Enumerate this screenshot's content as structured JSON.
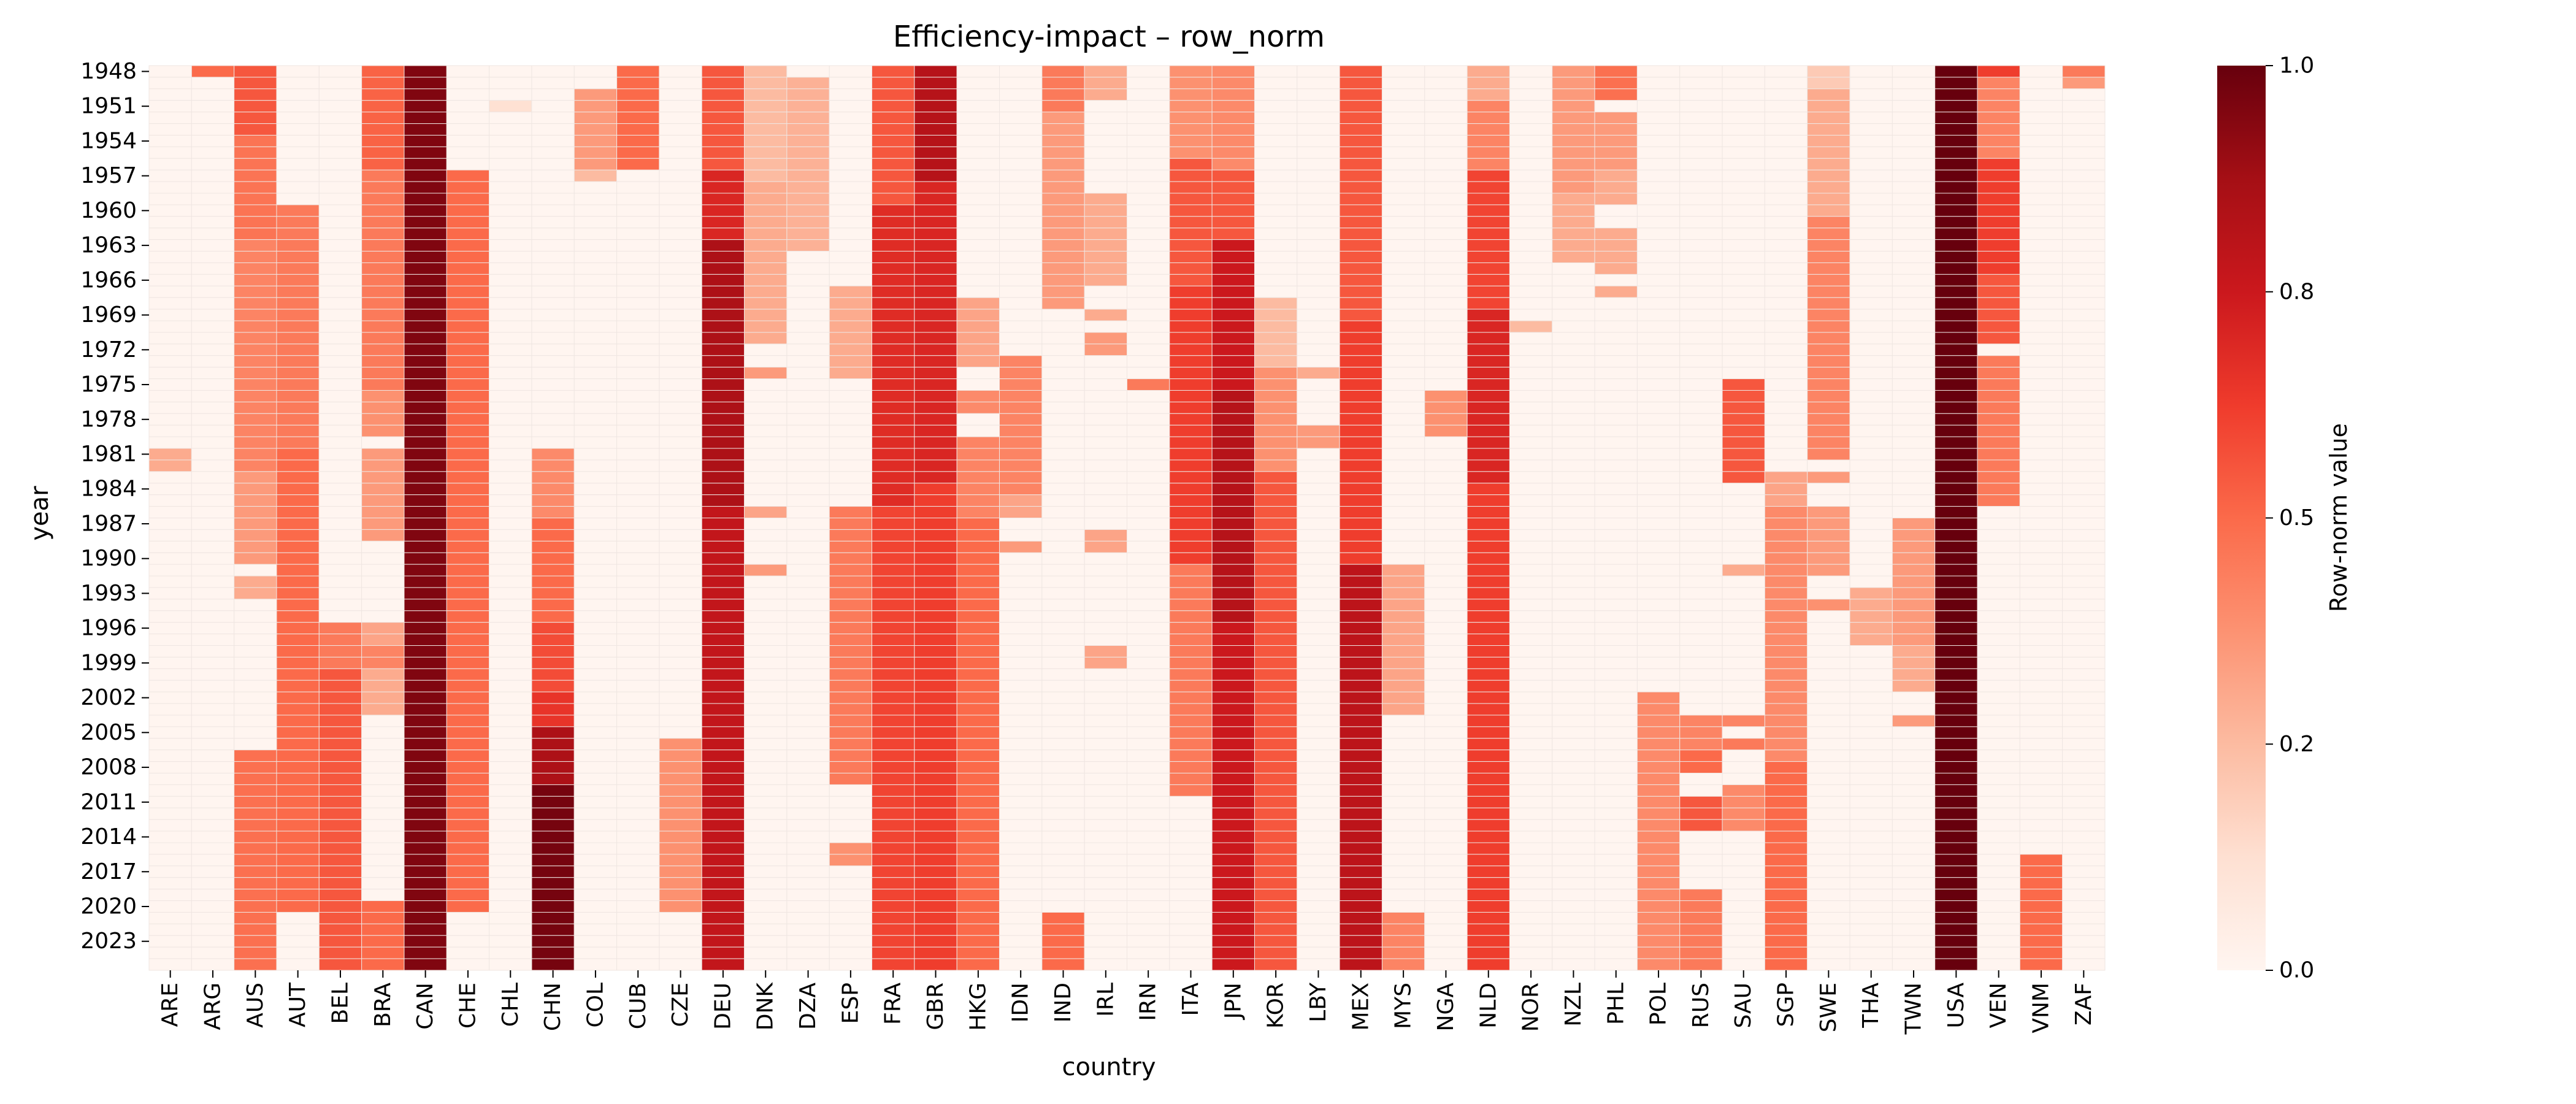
{
  "chart_data": {
    "type": "heatmap",
    "title": "Efficiency-impact – row_norm",
    "xlabel": "country",
    "ylabel": "year",
    "colorbar_label": "Row-norm value",
    "colormap": "Reds",
    "value_range": [
      0.0,
      1.0
    ],
    "colorbar_ticks": [
      "0.0",
      "0.2",
      "0.5",
      "0.8",
      "1.0"
    ],
    "colorbar_tick_values": [
      0.0,
      0.25,
      0.5,
      0.75,
      1.0
    ],
    "countries": [
      "ARE",
      "ARG",
      "AUS",
      "AUT",
      "BEL",
      "BRA",
      "CAN",
      "CHE",
      "CHL",
      "CHN",
      "COL",
      "CUB",
      "CZE",
      "DEU",
      "DNK",
      "DZA",
      "ESP",
      "FRA",
      "GBR",
      "HKG",
      "IDN",
      "IND",
      "IRL",
      "IRN",
      "ITA",
      "JPN",
      "KOR",
      "LBY",
      "MEX",
      "MYS",
      "NGA",
      "NLD",
      "NOR",
      "NZL",
      "PHL",
      "POL",
      "RUS",
      "SAU",
      "SGP",
      "SWE",
      "THA",
      "TWN",
      "USA",
      "VEN",
      "VNM",
      "ZAF"
    ],
    "year_start": 1948,
    "year_end": 2025,
    "year_tick_labels": [
      "1948",
      "1951",
      "1954",
      "1957",
      "1960",
      "1963",
      "1966",
      "1969",
      "1972",
      "1975",
      "1978",
      "1981",
      "1984",
      "1987",
      "1990",
      "1993",
      "1996",
      "1999",
      "2002",
      "2005",
      "2008",
      "2011",
      "2014",
      "2017",
      "2020",
      "2023"
    ],
    "series": [
      {
        "country": "ARE",
        "segments": [
          [
            1981,
            1982,
            0.3
          ]
        ]
      },
      {
        "country": "ARG",
        "segments": [
          [
            1948,
            1948,
            0.5
          ]
        ]
      },
      {
        "country": "AUS",
        "segments": [
          [
            1948,
            1953,
            0.55
          ],
          [
            1954,
            1962,
            0.47
          ],
          [
            1963,
            1982,
            0.42
          ],
          [
            1983,
            1990,
            0.35
          ],
          [
            1992,
            1993,
            0.3
          ],
          [
            2007,
            2025,
            0.48
          ]
        ]
      },
      {
        "country": "AUT",
        "segments": [
          [
            1960,
            1980,
            0.45
          ],
          [
            1981,
            2020,
            0.5
          ]
        ]
      },
      {
        "country": "BEL",
        "segments": [
          [
            1996,
            1999,
            0.45
          ],
          [
            2000,
            2025,
            0.55
          ]
        ]
      },
      {
        "country": "BRA",
        "segments": [
          [
            1948,
            1956,
            0.52
          ],
          [
            1957,
            1975,
            0.45
          ],
          [
            1976,
            1979,
            0.38
          ],
          [
            1981,
            1988,
            0.35
          ],
          [
            1996,
            1997,
            0.32
          ],
          [
            1998,
            1999,
            0.42
          ],
          [
            2000,
            2003,
            0.3
          ],
          [
            2020,
            2025,
            0.5
          ]
        ]
      },
      {
        "country": "CAN",
        "segments": [
          [
            1948,
            2025,
            0.95
          ]
        ]
      },
      {
        "country": "CHE",
        "segments": [
          [
            1957,
            2020,
            0.5
          ]
        ]
      },
      {
        "country": "CHL",
        "segments": [
          [
            1951,
            1951,
            0.12
          ]
        ]
      },
      {
        "country": "CHN",
        "segments": [
          [
            1981,
            1986,
            0.4
          ],
          [
            1987,
            1995,
            0.5
          ],
          [
            1996,
            2001,
            0.58
          ],
          [
            2002,
            2004,
            0.65
          ],
          [
            2005,
            2009,
            0.85
          ],
          [
            2010,
            2025,
            0.97
          ]
        ]
      },
      {
        "country": "COL",
        "segments": [
          [
            1950,
            1956,
            0.35
          ],
          [
            1957,
            1957,
            0.25
          ]
        ]
      },
      {
        "country": "CUB",
        "segments": [
          [
            1948,
            1956,
            0.5
          ]
        ]
      },
      {
        "country": "CZE",
        "segments": [
          [
            2006,
            2020,
            0.38
          ]
        ]
      },
      {
        "country": "DEU",
        "segments": [
          [
            1948,
            1956,
            0.55
          ],
          [
            1957,
            1962,
            0.7
          ],
          [
            1963,
            1985,
            0.85
          ],
          [
            1986,
            2025,
            0.78
          ]
        ]
      },
      {
        "country": "DNK",
        "segments": [
          [
            1948,
            1957,
            0.25
          ],
          [
            1958,
            1971,
            0.3
          ],
          [
            1974,
            1974,
            0.35
          ],
          [
            1986,
            1986,
            0.32
          ],
          [
            1991,
            1991,
            0.35
          ]
        ]
      },
      {
        "country": "DZA",
        "segments": [
          [
            1949,
            1963,
            0.28
          ]
        ]
      },
      {
        "country": "ESP",
        "segments": [
          [
            1967,
            1974,
            0.3
          ],
          [
            1986,
            2009,
            0.45
          ],
          [
            2015,
            2016,
            0.38
          ]
        ]
      },
      {
        "country": "FRA",
        "segments": [
          [
            1948,
            1959,
            0.55
          ],
          [
            1960,
            1985,
            0.68
          ],
          [
            1986,
            2025,
            0.6
          ]
        ]
      },
      {
        "country": "GBR",
        "segments": [
          [
            1948,
            1957,
            0.82
          ],
          [
            1958,
            1983,
            0.7
          ],
          [
            1984,
            2025,
            0.62
          ]
        ]
      },
      {
        "country": "HKG",
        "segments": [
          [
            1968,
            1973,
            0.32
          ],
          [
            1976,
            1977,
            0.4
          ],
          [
            1980,
            1986,
            0.42
          ],
          [
            1987,
            2025,
            0.5
          ]
        ]
      },
      {
        "country": "IDN",
        "segments": [
          [
            1973,
            1984,
            0.42
          ],
          [
            1985,
            1986,
            0.32
          ],
          [
            1989,
            1989,
            0.35
          ]
        ]
      },
      {
        "country": "IND",
        "segments": [
          [
            1948,
            1951,
            0.45
          ],
          [
            1952,
            1968,
            0.35
          ],
          [
            2021,
            2025,
            0.5
          ]
        ]
      },
      {
        "country": "IRL",
        "segments": [
          [
            1948,
            1950,
            0.3
          ],
          [
            1959,
            1966,
            0.3
          ],
          [
            1969,
            1969,
            0.3
          ],
          [
            1971,
            1972,
            0.35
          ],
          [
            1988,
            1989,
            0.32
          ],
          [
            1998,
            1999,
            0.32
          ]
        ]
      },
      {
        "country": "IRN",
        "segments": [
          [
            1975,
            1975,
            0.45
          ]
        ]
      },
      {
        "country": "ITA",
        "segments": [
          [
            1948,
            1955,
            0.38
          ],
          [
            1956,
            1966,
            0.55
          ],
          [
            1967,
            1990,
            0.62
          ],
          [
            1991,
            2010,
            0.45
          ]
        ]
      },
      {
        "country": "JPN",
        "segments": [
          [
            1948,
            1956,
            0.4
          ],
          [
            1957,
            1962,
            0.55
          ],
          [
            1963,
            1975,
            0.75
          ],
          [
            1976,
            1995,
            0.82
          ],
          [
            1996,
            2025,
            0.75
          ]
        ]
      },
      {
        "country": "KOR",
        "segments": [
          [
            1968,
            1973,
            0.25
          ],
          [
            1974,
            1982,
            0.38
          ],
          [
            1983,
            2025,
            0.55
          ]
        ]
      },
      {
        "country": "LBY",
        "segments": [
          [
            1974,
            1974,
            0.3
          ],
          [
            1979,
            1980,
            0.35
          ]
        ]
      },
      {
        "country": "MEX",
        "segments": [
          [
            1948,
            1969,
            0.55
          ],
          [
            1970,
            1990,
            0.62
          ],
          [
            1991,
            2025,
            0.8
          ]
        ]
      },
      {
        "country": "MYS",
        "segments": [
          [
            1991,
            2003,
            0.32
          ],
          [
            2021,
            2025,
            0.42
          ]
        ]
      },
      {
        "country": "NGA",
        "segments": [
          [
            1976,
            1979,
            0.38
          ]
        ]
      },
      {
        "country": "NLD",
        "segments": [
          [
            1948,
            1950,
            0.3
          ],
          [
            1951,
            1956,
            0.42
          ],
          [
            1957,
            1968,
            0.6
          ],
          [
            1969,
            1983,
            0.7
          ],
          [
            1984,
            2025,
            0.62
          ]
        ]
      },
      {
        "country": "NOR",
        "segments": [
          [
            1970,
            1970,
            0.25
          ]
        ]
      },
      {
        "country": "NZL",
        "segments": [
          [
            1948,
            1958,
            0.35
          ],
          [
            1959,
            1964,
            0.3
          ]
        ]
      },
      {
        "country": "PHL",
        "segments": [
          [
            1948,
            1950,
            0.48
          ],
          [
            1952,
            1956,
            0.35
          ],
          [
            1957,
            1959,
            0.3
          ],
          [
            1962,
            1965,
            0.3
          ],
          [
            1967,
            1967,
            0.3
          ]
        ]
      },
      {
        "country": "POL",
        "segments": [
          [
            2002,
            2025,
            0.4
          ]
        ]
      },
      {
        "country": "RUS",
        "segments": [
          [
            2004,
            2006,
            0.42
          ],
          [
            2007,
            2008,
            0.5
          ],
          [
            2011,
            2013,
            0.55
          ],
          [
            2019,
            2025,
            0.45
          ]
        ]
      },
      {
        "country": "SAU",
        "segments": [
          [
            1975,
            1983,
            0.55
          ],
          [
            1991,
            1991,
            0.3
          ],
          [
            2004,
            2004,
            0.42
          ],
          [
            2006,
            2006,
            0.45
          ],
          [
            2010,
            2013,
            0.4
          ]
        ]
      },
      {
        "country": "SGP",
        "segments": [
          [
            1983,
            1985,
            0.32
          ],
          [
            1986,
            2007,
            0.4
          ],
          [
            2008,
            2025,
            0.5
          ]
        ]
      },
      {
        "country": "SWE",
        "segments": [
          [
            1948,
            1949,
            0.2
          ],
          [
            1950,
            1960,
            0.3
          ],
          [
            1961,
            1981,
            0.42
          ],
          [
            1983,
            1983,
            0.35
          ],
          [
            1986,
            1991,
            0.35
          ],
          [
            1994,
            1994,
            0.38
          ]
        ]
      },
      {
        "country": "THA",
        "segments": [
          [
            1993,
            1997,
            0.3
          ]
        ]
      },
      {
        "country": "TWN",
        "segments": [
          [
            1987,
            1997,
            0.35
          ],
          [
            1998,
            2001,
            0.3
          ],
          [
            2004,
            2004,
            0.35
          ]
        ]
      },
      {
        "country": "USA",
        "segments": [
          [
            1948,
            2025,
            1.0
          ]
        ]
      },
      {
        "country": "VEN",
        "segments": [
          [
            1948,
            1948,
            0.62
          ],
          [
            1949,
            1955,
            0.42
          ],
          [
            1956,
            1965,
            0.62
          ],
          [
            1966,
            1971,
            0.55
          ],
          [
            1973,
            1985,
            0.45
          ]
        ]
      },
      {
        "country": "VNM",
        "segments": [
          [
            2016,
            2025,
            0.5
          ]
        ]
      },
      {
        "country": "ZAF",
        "segments": [
          [
            1948,
            1948,
            0.45
          ],
          [
            1949,
            1949,
            0.35
          ]
        ]
      }
    ]
  }
}
